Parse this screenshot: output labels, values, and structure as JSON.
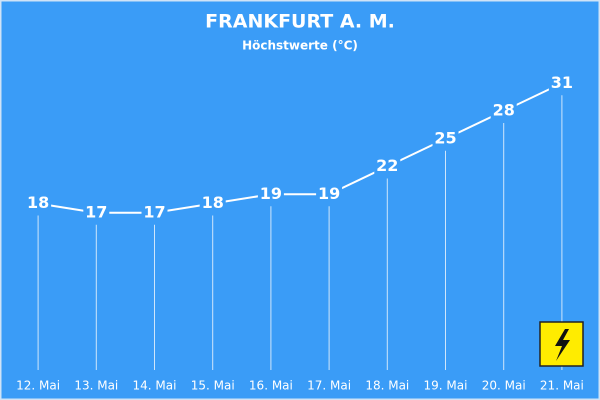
{
  "chart_data": {
    "type": "line",
    "title": "FRANKFURT A. M.",
    "subtitle": "Höchstwerte (°C)",
    "categories": [
      "12. Mai",
      "13. Mai",
      "14. Mai",
      "15. Mai",
      "16. Mai",
      "17. Mai",
      "18. Mai",
      "19. Mai",
      "20. Mai",
      "21. Mai"
    ],
    "values": [
      18,
      17,
      17,
      18,
      19,
      19,
      22,
      25,
      28,
      31
    ],
    "color": "#ffffff",
    "ylim": [
      0,
      40
    ]
  }
}
